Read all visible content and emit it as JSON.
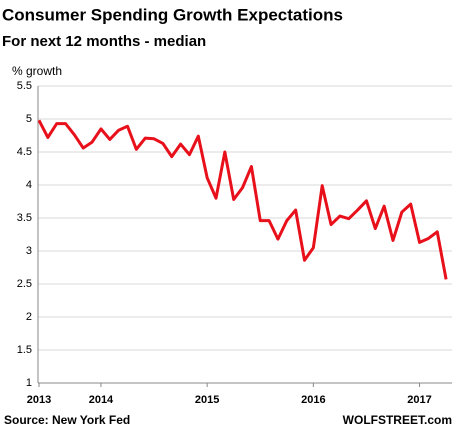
{
  "chart_data": {
    "type": "line",
    "title": "Consumer Spending Growth Expectations",
    "subtitle": "For next 12 months - median",
    "y_label": "% growth",
    "source": "Source: New York Fed",
    "credit": "WOLFSTREET.com",
    "categories": [
      "2013",
      null,
      null,
      null,
      null,
      null,
      null,
      "2014",
      null,
      null,
      null,
      null,
      null,
      null,
      null,
      null,
      null,
      null,
      null,
      "2015",
      null,
      null,
      null,
      null,
      null,
      null,
      null,
      null,
      null,
      null,
      null,
      "2016",
      null,
      null,
      null,
      null,
      null,
      null,
      null,
      null,
      null,
      null,
      null,
      "2017",
      null,
      null,
      null
    ],
    "series": [
      {
        "name": "Consumer spending growth expectations",
        "color": "#e8101a",
        "values": [
          4.98,
          4.72,
          4.93,
          4.93,
          4.76,
          4.56,
          4.65,
          4.85,
          4.69,
          4.83,
          4.89,
          4.54,
          4.71,
          4.7,
          4.63,
          4.43,
          4.62,
          4.46,
          4.74,
          4.11,
          3.8,
          4.5,
          3.78,
          3.96,
          4.28,
          3.46,
          3.46,
          3.18,
          3.46,
          3.62,
          2.86,
          3.05,
          3.99,
          3.4,
          3.53,
          3.49,
          3.62,
          3.76,
          3.34,
          3.68,
          3.16,
          3.59,
          3.71,
          3.13,
          3.19,
          3.29,
          2.57
        ]
      }
    ],
    "ylim": [
      1,
      5.5
    ],
    "yticks": [
      1,
      1.5,
      2,
      2.5,
      3,
      3.5,
      4,
      4.5,
      5,
      5.5
    ],
    "grid": true
  }
}
